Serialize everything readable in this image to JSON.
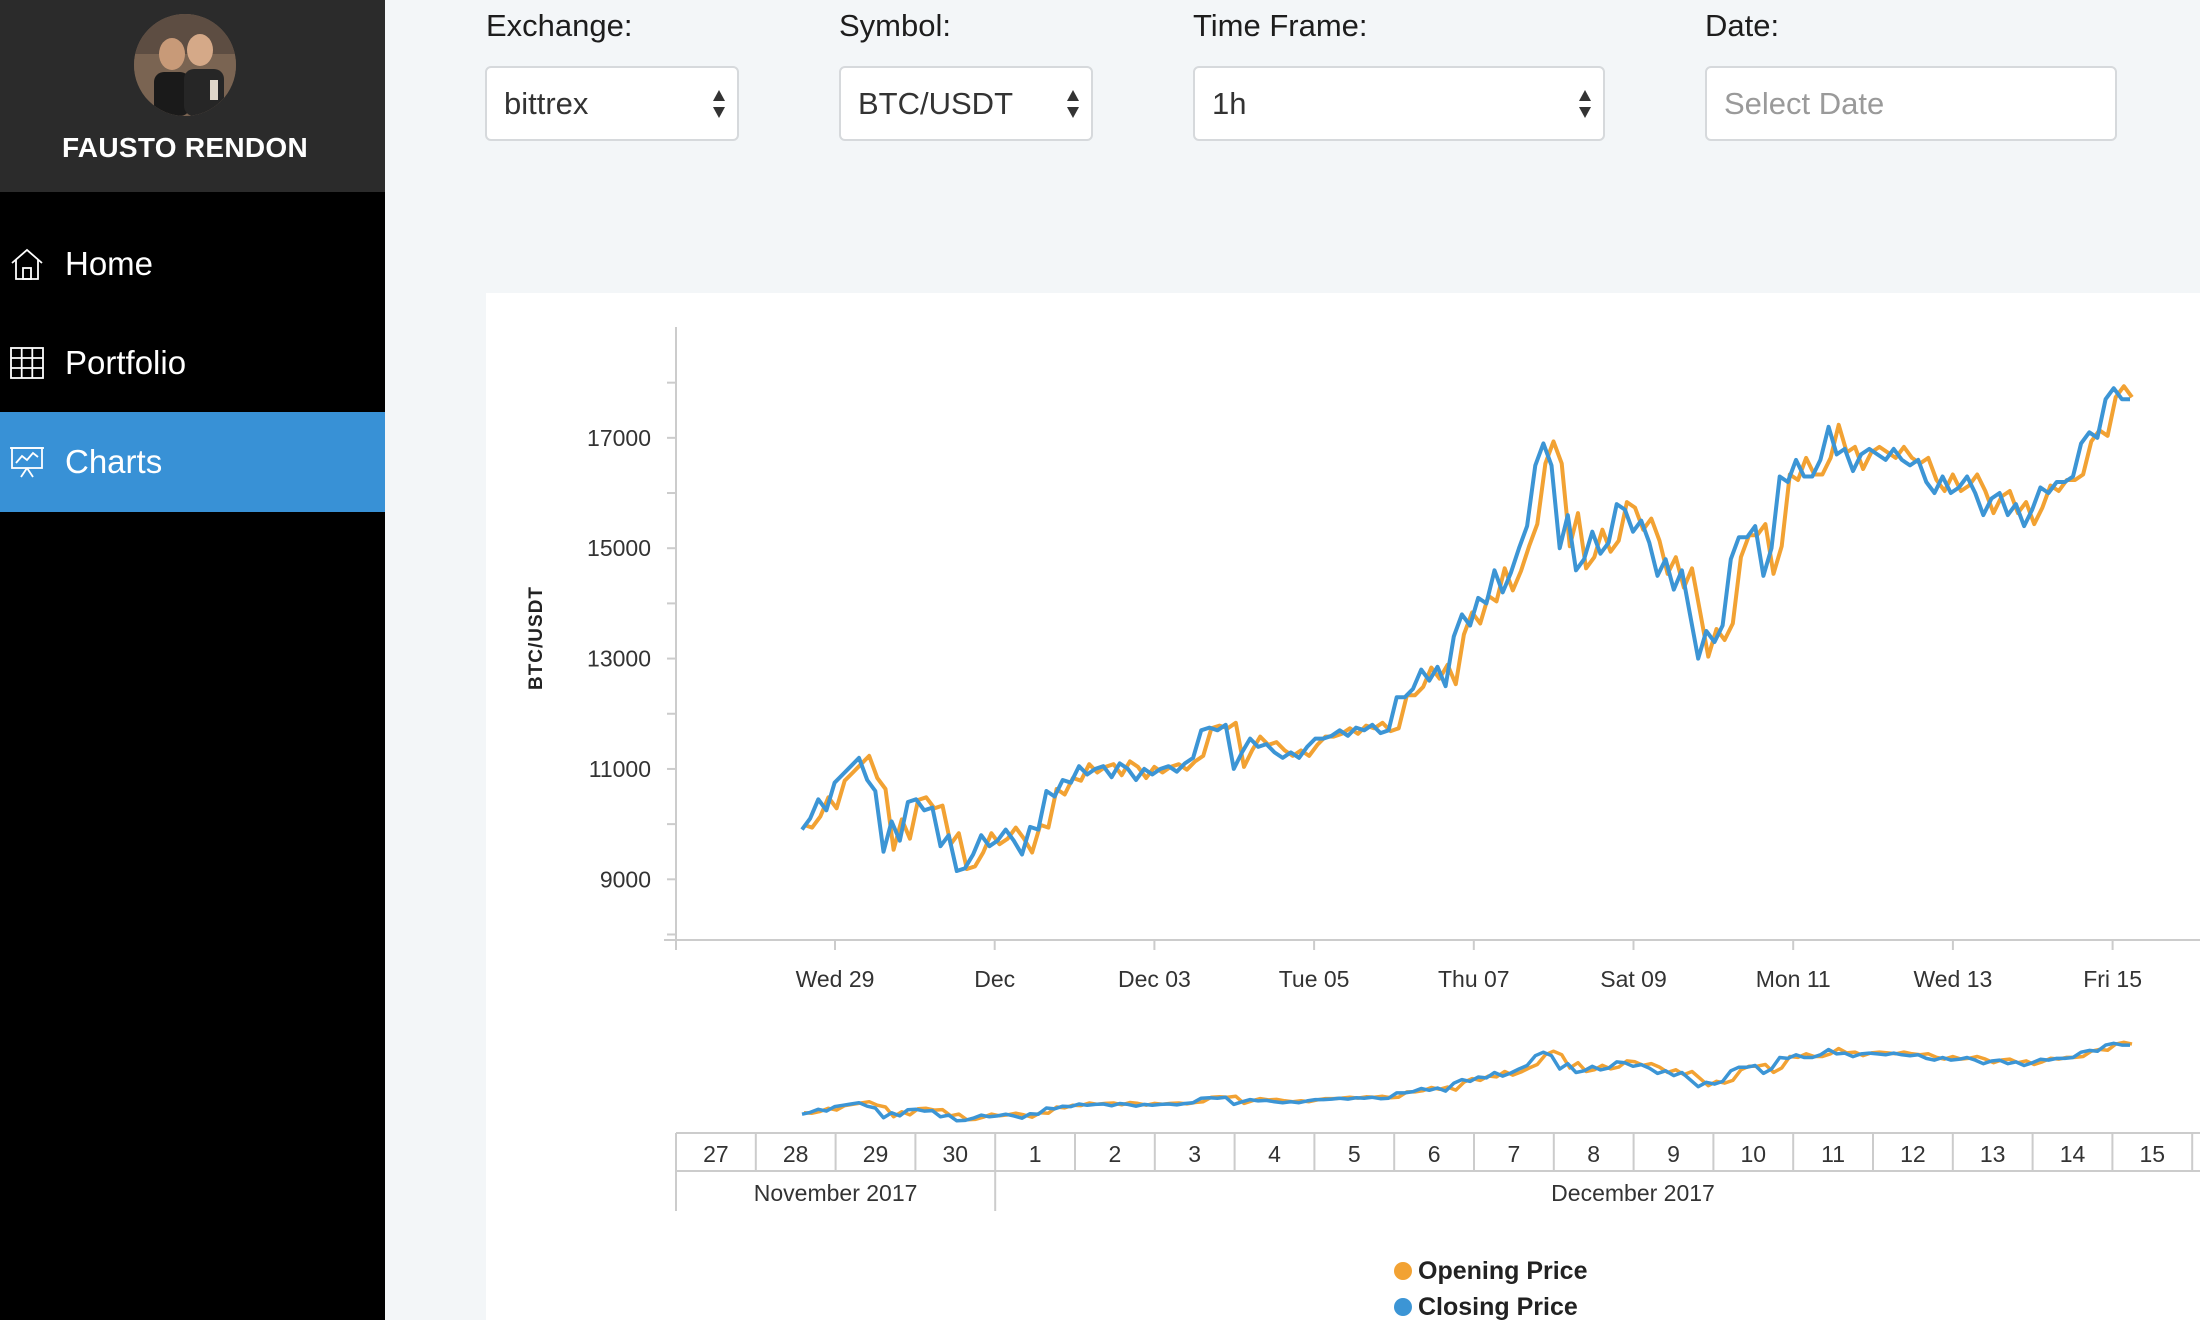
{
  "sidebar": {
    "user_name": "FAUSTO RENDON",
    "items": [
      {
        "label": "Home",
        "icon": "home-icon",
        "active": false
      },
      {
        "label": "Portfolio",
        "icon": "grid-icon",
        "active": false
      },
      {
        "label": "Charts",
        "icon": "presentation-chart-icon",
        "active": true
      }
    ],
    "active_color": "#3891d6"
  },
  "filters": {
    "exchange": {
      "label": "Exchange:",
      "value": "bittrex"
    },
    "symbol": {
      "label": "Symbol:",
      "value": "BTC/USDT"
    },
    "timeframe": {
      "label": "Time Frame:",
      "value": "1h"
    },
    "date": {
      "label": "Date:",
      "placeholder": "Select Date"
    }
  },
  "chart_data": {
    "type": "line",
    "ylabel": "BTC/USDT",
    "ylim": [
      7900,
      18900
    ],
    "yticks": [
      9000,
      11000,
      13000,
      15000,
      17000
    ],
    "x_tick_labels": [
      "Wed 29",
      "Dec",
      "Dec 03",
      "Tue 05",
      "Thu 07",
      "Sat 09",
      "Mon 11",
      "Wed 13",
      "Fri 15"
    ],
    "x_start": "2017-11-28 12:00",
    "x_end": "2017-12-15 00:00",
    "series": [
      {
        "name": "Opening Price",
        "color": "#f2a233",
        "values": [
          9950,
          9900,
          10100,
          10450,
          10250,
          10750,
          10900,
          11050,
          11200,
          10800,
          10600,
          9500,
          10050,
          9700,
          10400,
          10450,
          10250,
          10300,
          9600,
          9800,
          9150,
          9200,
          9450,
          9800,
          9600,
          9700,
          9900,
          9700,
          9450,
          9950,
          9900,
          10600,
          10500,
          10800,
          10750,
          11050,
          10900,
          11000,
          11050,
          10850,
          11100,
          11000,
          10800,
          11000,
          10900,
          11000,
          11050,
          10950,
          11100,
          11200,
          11700,
          11750,
          11700,
          11800,
          11000,
          11300,
          11550,
          11400,
          11450,
          11300,
          11200,
          11300,
          11200,
          11400,
          11550,
          11550,
          11600,
          11700,
          11600,
          11750,
          11700,
          11800,
          11650,
          11700,
          12300,
          12300,
          12450,
          12800,
          12600,
          12850,
          12500,
          13400,
          13800,
          13600,
          14100,
          14000,
          14600,
          14200,
          14550,
          15000,
          15400,
          16500,
          16900,
          16500,
          15000,
          15600,
          14600,
          14800,
          15300,
          14900,
          15100,
          15800,
          15700,
          15300,
          15500,
          15100,
          14500,
          14800,
          14250,
          14600,
          13800,
          13000,
          13500,
          13300,
          13600,
          14800,
          15200,
          15200,
          15400,
          14500,
          15000,
          16300,
          16200,
          16600,
          16300,
          16300,
          16600,
          17200,
          16700,
          16800,
          16400,
          16700,
          16800,
          16700,
          16600,
          16800,
          16600,
          16500,
          16600,
          16200,
          16000,
          16300,
          16000,
          16100,
          16300,
          16000,
          15600,
          15900,
          16000,
          15600,
          15800,
          15400,
          15700,
          16100,
          16000,
          16200,
          16200,
          16300,
          16900,
          17100,
          17000,
          17700,
          17900,
          17700
        ]
      },
      {
        "name": "Closing Price",
        "color": "#3c95d5",
        "values": [
          9900,
          10100,
          10450,
          10250,
          10750,
          10900,
          11050,
          11200,
          10800,
          10600,
          9500,
          10050,
          9700,
          10400,
          10450,
          10250,
          10300,
          9600,
          9800,
          9150,
          9200,
          9450,
          9800,
          9600,
          9700,
          9900,
          9700,
          9450,
          9950,
          9900,
          10600,
          10500,
          10800,
          10750,
          11050,
          10900,
          11000,
          11050,
          10850,
          11100,
          11000,
          10800,
          11000,
          10900,
          11000,
          11050,
          10950,
          11100,
          11200,
          11700,
          11750,
          11700,
          11800,
          11000,
          11300,
          11550,
          11400,
          11450,
          11300,
          11200,
          11300,
          11200,
          11400,
          11550,
          11550,
          11600,
          11700,
          11600,
          11750,
          11700,
          11800,
          11650,
          11700,
          12300,
          12300,
          12450,
          12800,
          12600,
          12850,
          12500,
          13400,
          13800,
          13600,
          14100,
          14000,
          14600,
          14200,
          14550,
          15000,
          15400,
          16500,
          16900,
          16500,
          15000,
          15600,
          14600,
          14800,
          15300,
          14900,
          15100,
          15800,
          15700,
          15300,
          15500,
          15100,
          14500,
          14800,
          14250,
          14600,
          13800,
          13000,
          13500,
          13300,
          13600,
          14800,
          15200,
          15200,
          15400,
          14500,
          15000,
          16300,
          16200,
          16600,
          16300,
          16300,
          16600,
          17200,
          16700,
          16800,
          16400,
          16700,
          16800,
          16700,
          16600,
          16800,
          16600,
          16500,
          16600,
          16200,
          16000,
          16300,
          16000,
          16100,
          16300,
          16000,
          15600,
          15900,
          16000,
          15600,
          15800,
          15400,
          15700,
          16100,
          16000,
          16200,
          16200,
          16300,
          16900,
          17100,
          17000,
          17700,
          17900,
          17700,
          17700
        ]
      }
    ],
    "navigator": {
      "day_labels": [
        "27",
        "28",
        "29",
        "30",
        "1",
        "2",
        "3",
        "4",
        "5",
        "6",
        "7",
        "8",
        "9",
        "10",
        "11",
        "12",
        "13",
        "14",
        "15"
      ],
      "month_labels": [
        "November 2017",
        "December 2017"
      ]
    },
    "legend": [
      "Opening Price",
      "Closing Price"
    ]
  }
}
